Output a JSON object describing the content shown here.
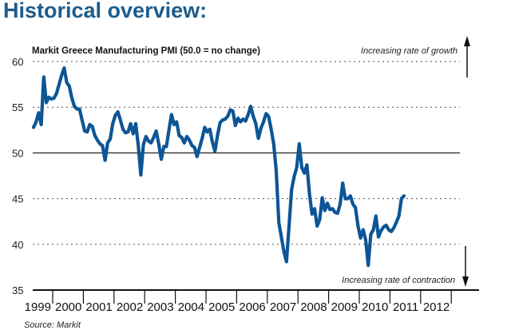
{
  "header": {
    "title": "Historical overview:"
  },
  "colors": {
    "title": "#1c5d8c",
    "series": "#0d5596",
    "axis": "#111111",
    "grid": "#555555"
  },
  "chart_data": {
    "type": "line",
    "title": "Markit Greece Manufacturing PMI (50.0 = no change)",
    "xlabel": "",
    "ylabel": "",
    "ylim": [
      35,
      60
    ],
    "yticks": [
      "35",
      "40",
      "45",
      "50",
      "55",
      "60"
    ],
    "grid": "dotted horizontal at 40, 45, 55, 60; solid at 50",
    "x_tick_labels": [
      "1999",
      "2000",
      "2001",
      "2002",
      "2003",
      "2004",
      "2005",
      "2006",
      "2007",
      "2008",
      "2009",
      "2010",
      "2011",
      "2012"
    ],
    "start": "1999-05",
    "frequency": "monthly",
    "series": [
      {
        "name": "Markit Greece Manufacturing PMI",
        "values": [
          52.8,
          53.4,
          54.4,
          53.1,
          58.3,
          55.5,
          56.1,
          55.9,
          56.0,
          56.5,
          57.5,
          58.5,
          59.3,
          57.7,
          57.3,
          56.0,
          55.1,
          54.8,
          54.8,
          53.6,
          52.4,
          52.3,
          53.1,
          52.9,
          51.9,
          51.4,
          51.0,
          50.8,
          49.2,
          51.1,
          51.5,
          53.2,
          54.1,
          54.5,
          53.6,
          52.6,
          52.2,
          52.3,
          53.2,
          52.1,
          53.2,
          50.8,
          47.6,
          50.9,
          51.8,
          51.3,
          51.1,
          51.7,
          52.4,
          51.0,
          49.3,
          50.7,
          50.7,
          52.5,
          54.2,
          53.1,
          53.4,
          51.9,
          51.7,
          51.1,
          51.8,
          51.4,
          50.8,
          50.6,
          49.6,
          50.6,
          51.6,
          52.8,
          52.3,
          52.6,
          51.2,
          50.2,
          51.9,
          53.3,
          53.6,
          53.7,
          54.0,
          54.7,
          54.6,
          53.0,
          53.8,
          53.4,
          53.7,
          53.5,
          54.2,
          55.1,
          54.0,
          53.2,
          51.6,
          52.7,
          53.4,
          54.3,
          54.0,
          52.6,
          51.0,
          48.0,
          42.4,
          40.8,
          39.2,
          38.1,
          42.0,
          46.0,
          47.4,
          48.4,
          51.0,
          48.4,
          47.8,
          48.7,
          45.5,
          43.3,
          43.9,
          42.0,
          42.7,
          45.1,
          43.7,
          44.5,
          43.8,
          43.9,
          43.5,
          43.4,
          44.4,
          46.7,
          45.0,
          45.0,
          45.3,
          44.4,
          44.0,
          42.0,
          40.7,
          41.6,
          40.5,
          37.7,
          41.1,
          41.6,
          43.1,
          40.8,
          41.5,
          41.9,
          42.1,
          41.6,
          41.4,
          41.8,
          42.4,
          43.1,
          45.0,
          45.3
        ]
      }
    ],
    "annotations": [
      "Increasing rate of growth",
      "Increasing rate of contraction"
    ],
    "source": "Source: Markit"
  }
}
